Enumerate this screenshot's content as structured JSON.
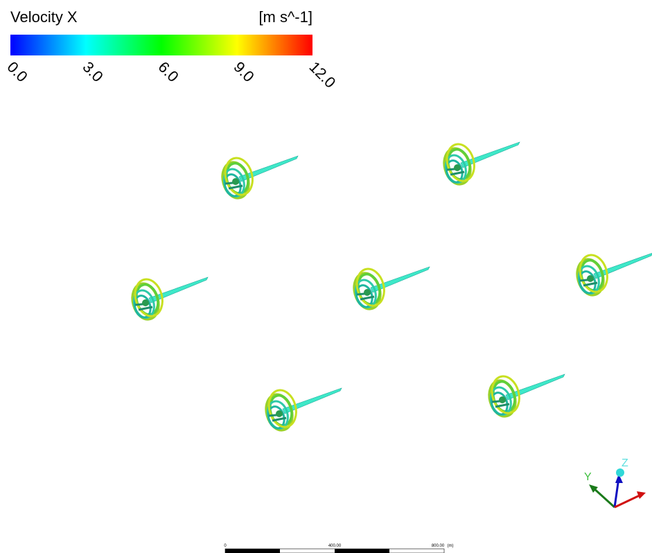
{
  "legend": {
    "title": "Velocity X",
    "unit": "[m s^-1]",
    "ticks": [
      "0.0",
      "3.0",
      "6.0",
      "9.0",
      "12.0"
    ]
  },
  "scale_bar": {
    "labels": [
      "0",
      "400.00",
      "800.00",
      "(m)"
    ]
  },
  "axes": {
    "labels": [
      "Y",
      "Z"
    ]
  }
}
